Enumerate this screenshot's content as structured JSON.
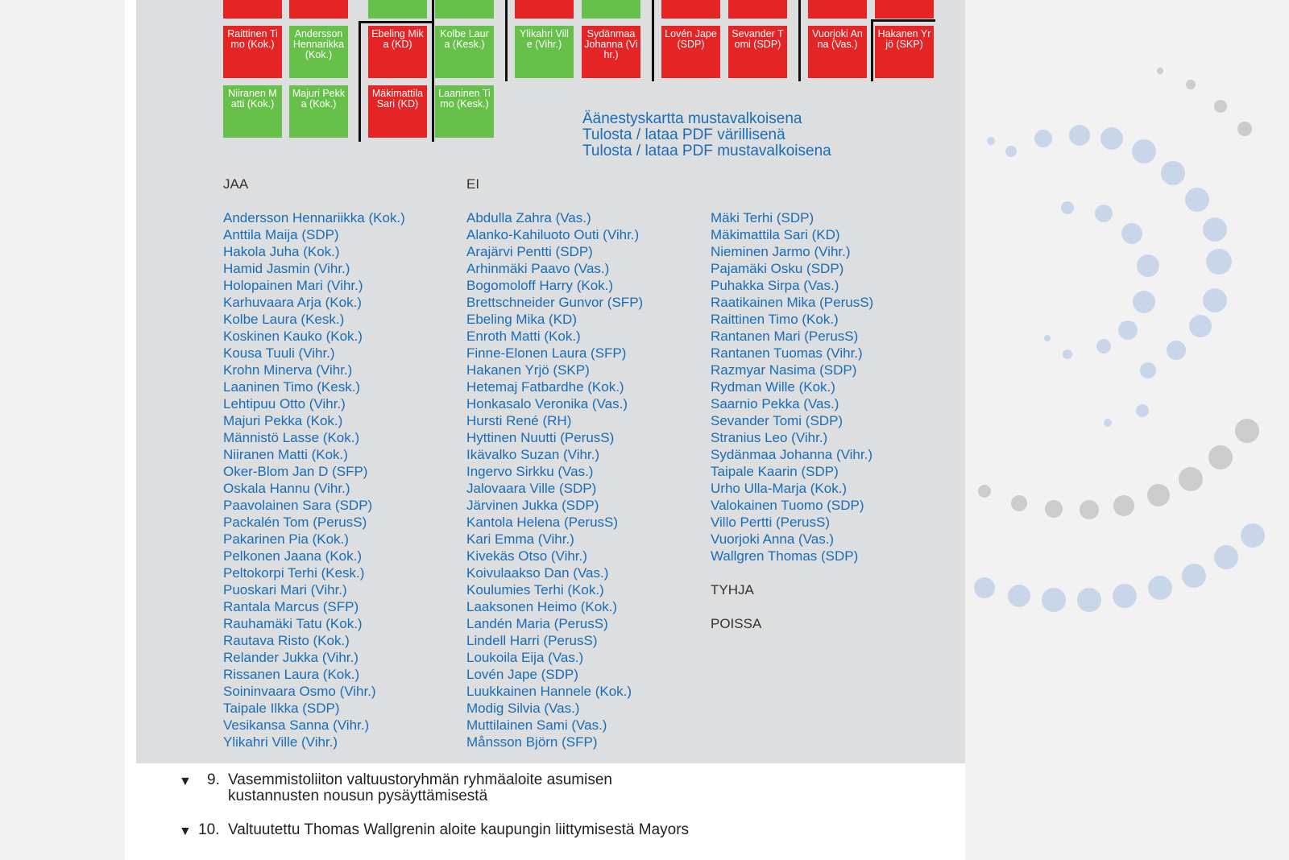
{
  "seat_map": {
    "tiles": [
      {
        "label": "Raittinen Timo (Kok.)"
      },
      {
        "label": "Andersson Hennarikka (Kok.)"
      },
      {
        "label": "Ebeling Mika (KD)"
      },
      {
        "label": "Kolbe Laura (Kesk.)"
      },
      {
        "label": "Ylikahri Ville (Vihr.)"
      },
      {
        "label": "Sydänmaa Johanna (Vihr.)"
      },
      {
        "label": "Lovén Jape (SDP)"
      },
      {
        "label": "Sevander Tomi (SDP)"
      },
      {
        "label": "Vuorjoki Anna (Vas.)"
      },
      {
        "label": "Hakanen Yrjö (SKP)"
      },
      {
        "label": "Niiranen Matti (Kok.)"
      },
      {
        "label": "Majuri Pekka (Kok.)"
      },
      {
        "label": "Mäkimattila Sari (KD)"
      },
      {
        "label": "Laaninen Timo (Kesk.)"
      }
    ]
  },
  "links": [
    "Äänestyskartta mustavalkoisena",
    "Tulosta / lataa PDF värillisenä",
    "Tulosta / lataa PDF mustavalkoisena"
  ],
  "jaa": {
    "heading": "JAA",
    "names": [
      "Andersson Hennariikka (Kok.)",
      "Anttila Maija (SDP)",
      "Hakola Juha (Kok.)",
      "Hamid Jasmin (Vihr.)",
      "Holopainen Mari (Vihr.)",
      "Karhuvaara Arja (Kok.)",
      "Kolbe Laura (Kesk.)",
      "Koskinen Kauko (Kok.)",
      "Kousa Tuuli (Vihr.)",
      "Krohn Minerva (Vihr.)",
      "Laaninen Timo (Kesk.)",
      "Lehtipuu Otto (Vihr.)",
      "Majuri Pekka (Kok.)",
      "Männistö Lasse (Kok.)",
      "Niiranen Matti (Kok.)",
      "Oker-Blom Jan D (SFP)",
      "Oskala Hannu (Vihr.)",
      "Paavolainen Sara (SDP)",
      "Packalén Tom (PerusS)",
      "Pakarinen Pia (Kok.)",
      "Pelkonen Jaana (Kok.)",
      "Peltokorpi Terhi (Kesk.)",
      "Puoskari Mari (Vihr.)",
      "Rantala Marcus (SFP)",
      "Rauhamäki Tatu (Kok.)",
      "Rautava Risto (Kok.)",
      "Relander Jukka (Vihr.)",
      "Rissanen Laura (Kok.)",
      "Soininvaara Osmo (Vihr.)",
      "Taipale Ilkka (SDP)",
      "Vesikansa Sanna (Vihr.)",
      "Ylikahri Ville (Vihr.)"
    ]
  },
  "ei": {
    "heading": "EI",
    "names": [
      "Abdulla Zahra (Vas.)",
      "Alanko-Kahiluoto Outi (Vihr.)",
      "Arajärvi Pentti (SDP)",
      "Arhinmäki Paavo (Vas.)",
      "Bogomoloff Harry (Kok.)",
      "Brettschneider Gunvor (SFP)",
      "Ebeling Mika (KD)",
      "Enroth Matti (Kok.)",
      "Finne-Elonen Laura (SFP)",
      "Hakanen Yrjö (SKP)",
      "Hetemaj Fatbardhe (Kok.)",
      "Honkasalo Veronika (Vas.)",
      "Hursti René (RH)",
      "Hyttinen Nuutti (PerusS)",
      "Ikävalko Suzan (Vihr.)",
      "Ingervo Sirkku (Vas.)",
      "Jalovaara Ville (SDP)",
      "Järvinen Jukka (SDP)",
      "Kantola Helena (PerusS)",
      "Kari Emma (Vihr.)",
      "Kivekäs Otso (Vihr.)",
      "Koivulaakso Dan (Vas.)",
      "Koulumies Terhi (Kok.)",
      "Laaksonen Heimo (Kok.)",
      "Landén Maria (PerusS)",
      "Lindell Harri (PerusS)",
      "Loukoila Eija (Vas.)",
      "Lovén Jape (SDP)",
      "Luukkainen Hannele (Kok.)",
      "Modig Silvia (Vas.)",
      "Muttilainen Sami (Vas.)",
      "Månsson Björn (SFP)",
      "Mäki Terhi (SDP)",
      "Mäkimattila Sari (KD)",
      "Nieminen Jarmo (Vihr.)",
      "Pajamäki Osku (SDP)",
      "Puhakka Sirpa (Vas.)",
      "Raatikainen Mika (PerusS)",
      "Raittinen Timo (Kok.)",
      "Rantanen Mari (PerusS)",
      "Rantanen Tuomas (Vihr.)",
      "Razmyar Nasima (SDP)",
      "Rydman Wille (Kok.)",
      "Saarnio Pekka (Vas.)",
      "Sevander Tomi (SDP)",
      "Stranius Leo (Vihr.)",
      "Sydänmaa Johanna (Vihr.)",
      "Taipale Kaarin (SDP)",
      "Urho Ulla-Marja (Kok.)",
      "Valokainen Tuomo (SDP)",
      "Villo Pertti (PerusS)",
      "Vuorjoki Anna (Vas.)",
      "Wallgren Thomas (SDP)"
    ]
  },
  "tyhja": {
    "heading": "TYHJA"
  },
  "poissa": {
    "heading": "POISSA"
  },
  "items": [
    {
      "number": "9.",
      "title": "Vasemmistoliiton valtuustoryhmän ryhmäaloite asumisen kustannusten nousun pysäyttämisestä"
    },
    {
      "number": "10.",
      "title": "Valtuutettu Thomas Wallgrenin aloite kaupungin liittymisestä Mayors"
    }
  ]
}
